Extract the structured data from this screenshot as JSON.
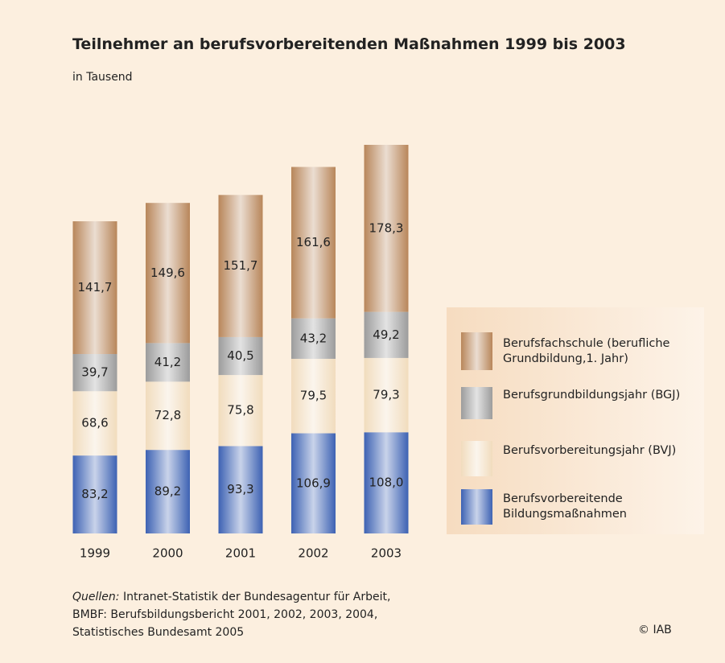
{
  "chart_data": {
    "type": "stacked_bar",
    "title": "Teilnehmer an berufsvorbereitenden Maßnahmen 1999 bis 2003",
    "subtitle": "in Tausend",
    "categories": [
      "1999",
      "2000",
      "2001",
      "2002",
      "2003"
    ],
    "series": [
      {
        "name": "Berufsvorbereitende Bildungsmaßnahmen",
        "color": "#3d62b3",
        "values": [
          83.2,
          89.2,
          93.3,
          106.9,
          108.0
        ],
        "value_labels": [
          "83,2",
          "89,2",
          "93,3",
          "106,9",
          "108,0"
        ]
      },
      {
        "name": "Berufsvorbereitungsjahr (BVJ)",
        "color": "#f1dcbd",
        "values": [
          68.6,
          72.8,
          75.8,
          79.5,
          79.3
        ],
        "value_labels": [
          "68,6",
          "72,8",
          "75,8",
          "79,5",
          "79,3"
        ]
      },
      {
        "name": "Berufsgrundbildungsjahr (BGJ)",
        "color": "#9c9c9c",
        "values": [
          39.7,
          41.2,
          40.5,
          43.2,
          49.2
        ],
        "value_labels": [
          "39,7",
          "41,2",
          "40,5",
          "43,2",
          "49,2"
        ]
      },
      {
        "name": "Berufsfachschule (berufliche Grundbildung,1. Jahr)",
        "color": "#b8865a",
        "values": [
          141.7,
          149.6,
          151.7,
          161.6,
          178.3
        ],
        "value_labels": [
          "141,7",
          "149,6",
          "151,7",
          "161,6",
          "178,3"
        ]
      }
    ],
    "source": {
      "label": "Quellen:",
      "lines": [
        "Intranet-Statistik der Bundesagentur für Arbeit,",
        "BMBF: Berufsbildungsbericht 2001, 2002, 2003, 2004,",
        "Statistisches Bundesamt 2005"
      ]
    },
    "copyright": "© IAB"
  }
}
